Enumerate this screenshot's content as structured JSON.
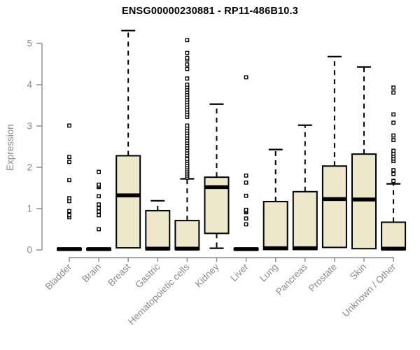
{
  "chart_data": {
    "type": "boxplot",
    "title": "ENSG00000230881 - RP11-486B10.3",
    "ylabel": "Expression",
    "xlabel": "",
    "ylim": [
      0,
      5.4
    ],
    "yticks": [
      0,
      1,
      2,
      3,
      4,
      5
    ],
    "grid": false,
    "legend": "none",
    "colors": {
      "box_fill": "#EDE7CC",
      "box_border": "#000000",
      "median": "#000000",
      "whisker": "#000000",
      "axis": "#8a8a8a",
      "title": "#000000",
      "background": "#ffffff"
    },
    "categories": [
      "Bladder",
      "Brain",
      "Breast",
      "Gastric",
      "Hematopoietic cells",
      "Kidney",
      "Liver",
      "Lung",
      "Pancreas",
      "Prostate",
      "Skin",
      "Unknown / Other"
    ],
    "series": [
      {
        "label": "Bladder",
        "q1": 0,
        "median": 0.02,
        "q3": 0.04,
        "whisker_low": 0,
        "whisker_high": 0.04,
        "outliers": [
          0.79,
          0.84,
          0.94,
          1.18,
          1.25,
          1.69,
          2.13,
          2.25,
          3.01
        ]
      },
      {
        "label": "Brain",
        "q1": 0,
        "median": 0.02,
        "q3": 0.04,
        "whisker_low": 0,
        "whisker_high": 0.04,
        "outliers": [
          0.5,
          0.84,
          0.93,
          1.01,
          1.1,
          1.3,
          1.52,
          1.55,
          1.58,
          1.89
        ]
      },
      {
        "label": "Breast",
        "q1": 0.05,
        "median": 1.32,
        "q3": 2.28,
        "whisker_low": 0.05,
        "whisker_high": 5.31,
        "outliers": []
      },
      {
        "label": "Gastric",
        "q1": 0.01,
        "median": 0.03,
        "q3": 0.95,
        "whisker_low": 0.01,
        "whisker_high": 1.19,
        "outliers": []
      },
      {
        "label": "Hematopoietic cells",
        "q1": 0.01,
        "median": 0.03,
        "q3": 0.71,
        "whisker_low": 0.01,
        "whisker_high": 1.72,
        "outliers": [
          1.75,
          1.8,
          1.85,
          1.9,
          1.95,
          2.0,
          2.05,
          2.1,
          2.15,
          2.2,
          2.29,
          2.35,
          2.41,
          2.47,
          2.53,
          2.59,
          2.65,
          2.71,
          2.77,
          2.83,
          2.89,
          2.95,
          3.01,
          3.22,
          3.28,
          3.34,
          3.4,
          3.46,
          3.52,
          3.58,
          3.64,
          3.7,
          3.76,
          3.82,
          3.88,
          3.94,
          4.0,
          4.15,
          4.38,
          4.49,
          4.61,
          4.65,
          4.77,
          5.08
        ]
      },
      {
        "label": "Kidney",
        "q1": 0.4,
        "median": 1.52,
        "q3": 1.76,
        "whisker_low": 0.04,
        "whisker_high": 3.53,
        "outliers": []
      },
      {
        "label": "Liver",
        "q1": 0,
        "median": 0.02,
        "q3": 0.04,
        "whisker_low": 0,
        "whisker_high": 0.04,
        "outliers": [
          0.62,
          0.76,
          0.91,
          0.94,
          0.97,
          1.31,
          1.63,
          1.8,
          4.18
        ]
      },
      {
        "label": "Lung",
        "q1": 0.01,
        "median": 0.04,
        "q3": 1.17,
        "whisker_low": 0.01,
        "whisker_high": 2.43,
        "outliers": []
      },
      {
        "label": "Pancreas",
        "q1": 0.01,
        "median": 0.04,
        "q3": 1.41,
        "whisker_low": 0.01,
        "whisker_high": 3.02,
        "outliers": []
      },
      {
        "label": "Prostate",
        "q1": 0.06,
        "median": 1.23,
        "q3": 2.03,
        "whisker_low": 0.06,
        "whisker_high": 4.68,
        "outliers": []
      },
      {
        "label": "Skin",
        "q1": 0.03,
        "median": 1.22,
        "q3": 2.32,
        "whisker_low": 0.03,
        "whisker_high": 4.43,
        "outliers": []
      },
      {
        "label": "Unknown / Other",
        "q1": 0.01,
        "median": 0.03,
        "q3": 0.67,
        "whisker_low": 0.01,
        "whisker_high": 1.6,
        "outliers": [
          1.67,
          1.84,
          1.93,
          2.15,
          2.21,
          2.27,
          2.33,
          2.4,
          2.66,
          2.77,
          3.08,
          3.28,
          3.81,
          3.93
        ]
      }
    ]
  }
}
